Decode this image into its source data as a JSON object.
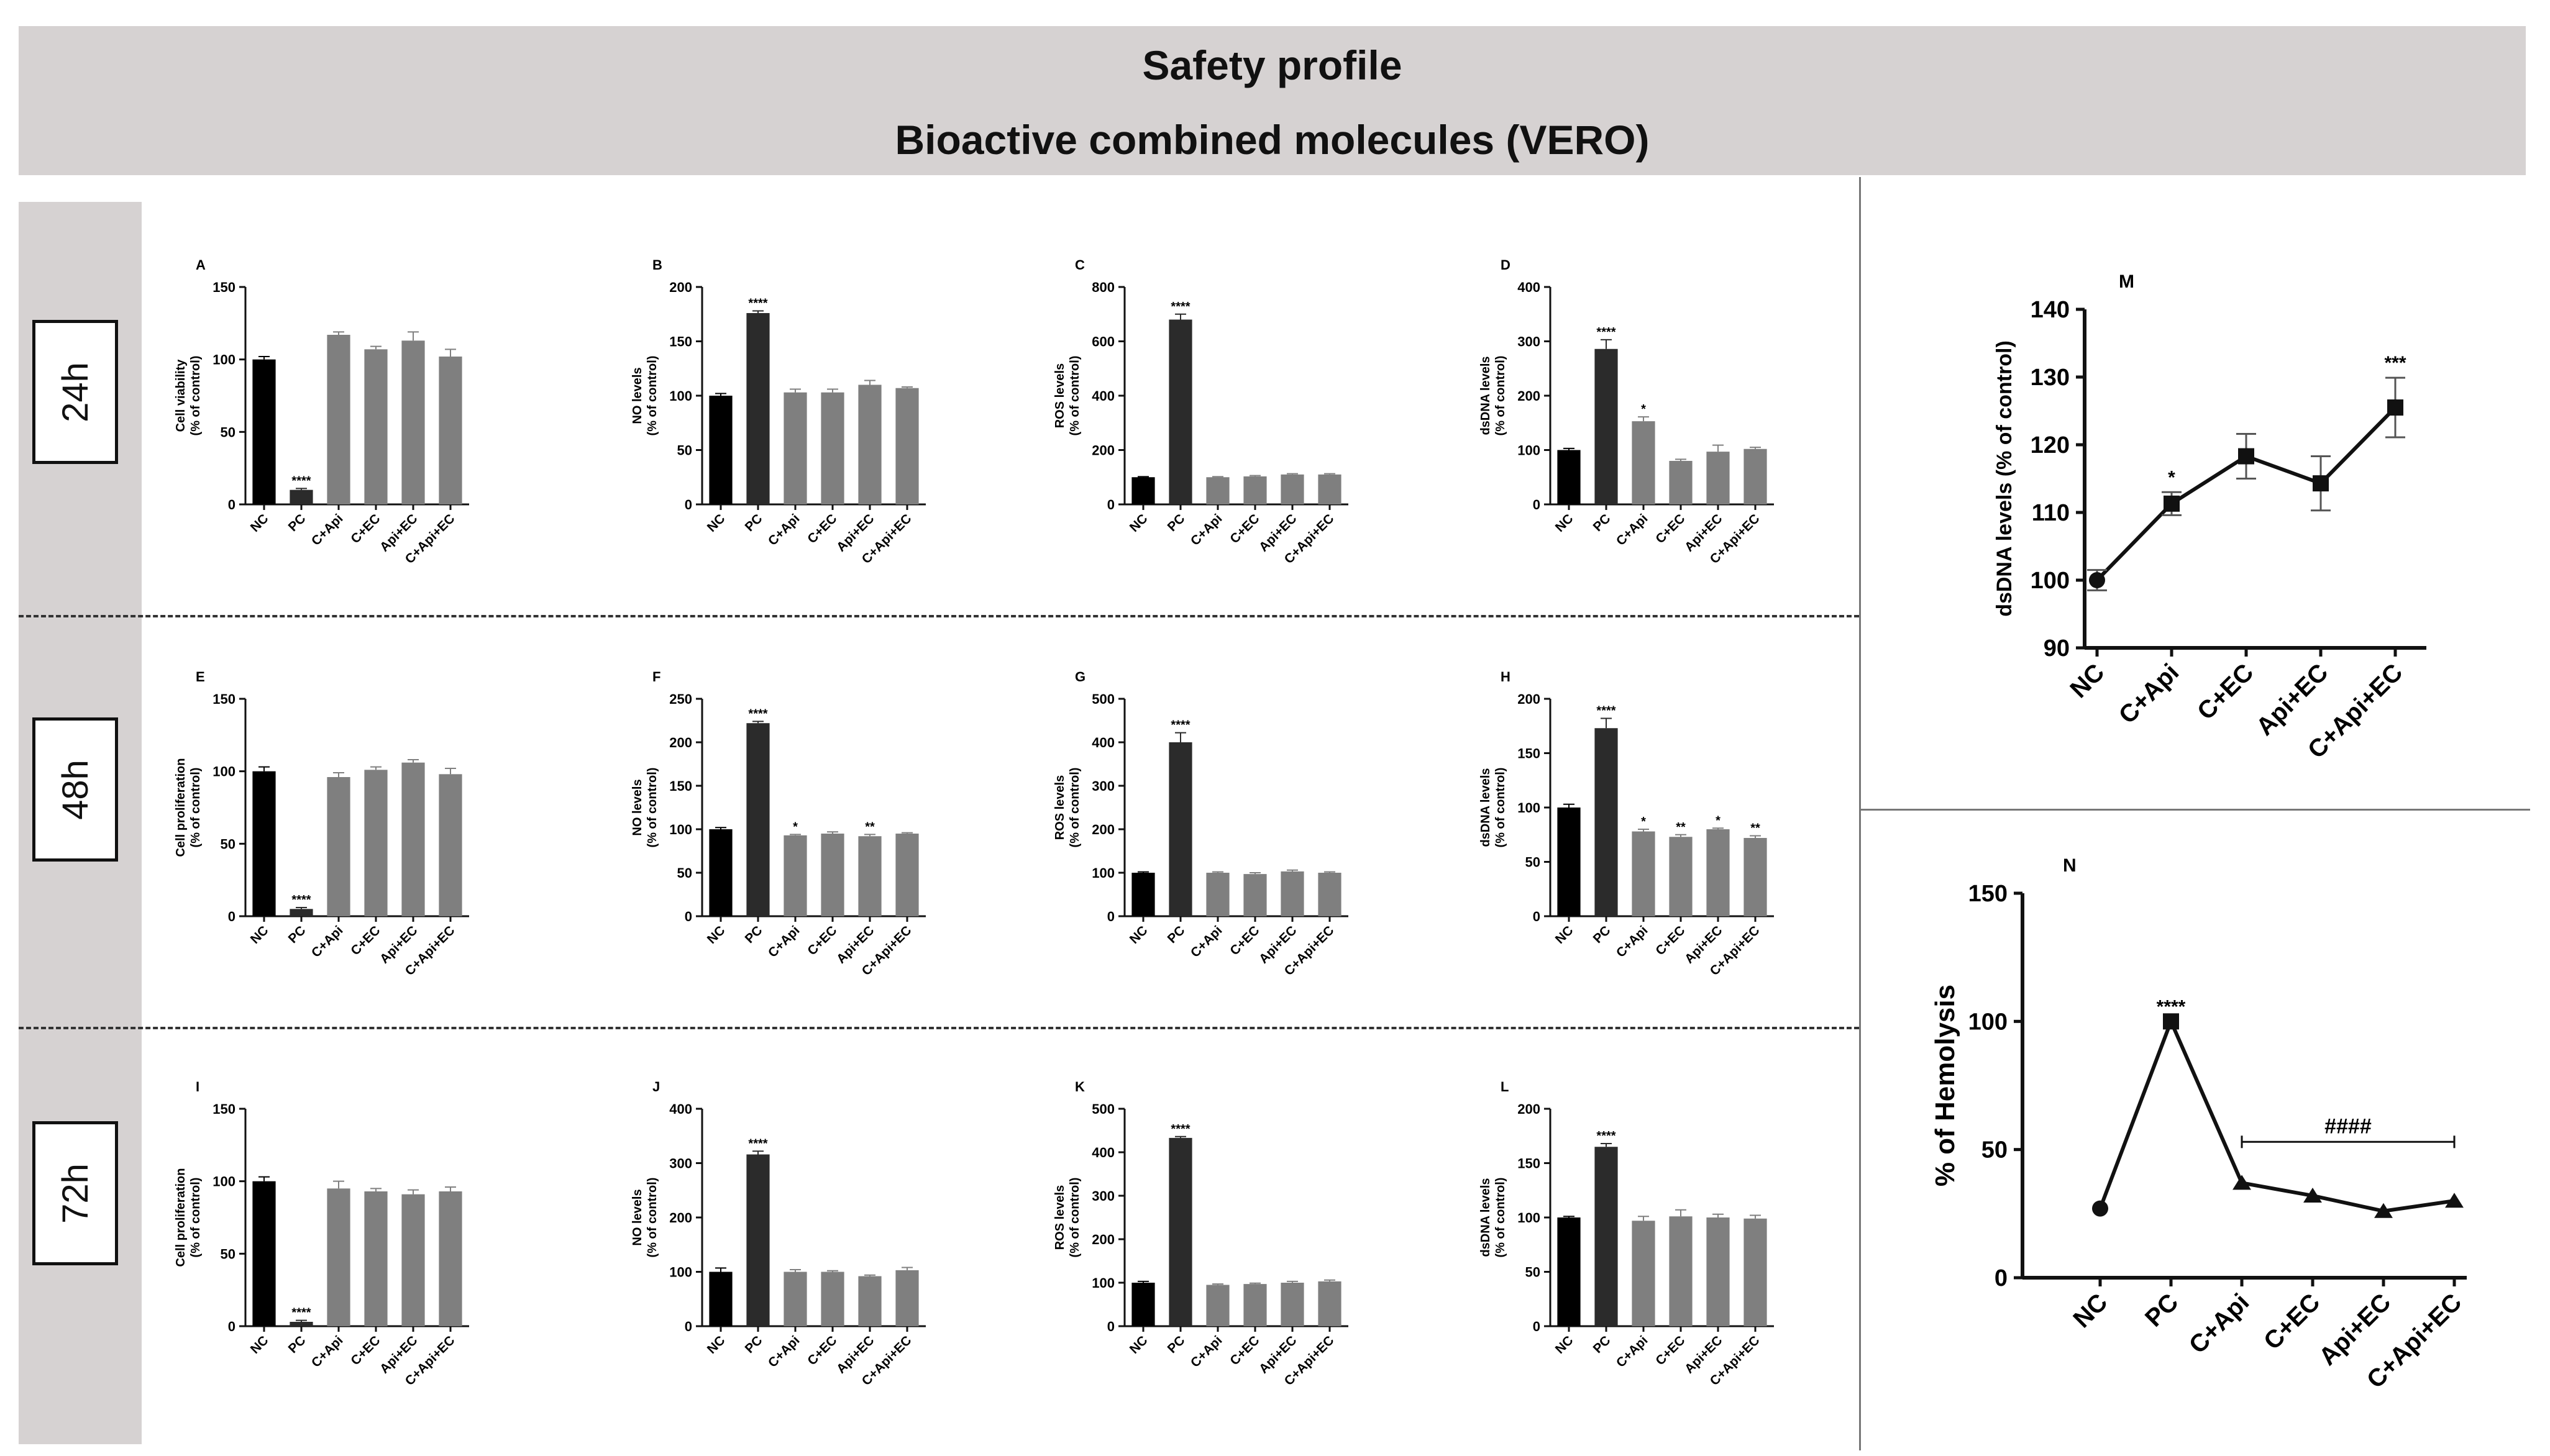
{
  "header": {
    "title": "Safety profile",
    "subtitle": "Bioactive combined molecules (VERO)"
  },
  "row_labels": [
    "24h",
    "48h",
    "72h"
  ],
  "colors": {
    "nc": "#000000",
    "pc": "#2b2b2b",
    "treat": "#7f7f7f",
    "banner": "#d6d2d2"
  },
  "chart_data": [
    {
      "id": "A",
      "type": "bar",
      "title": "A",
      "ylabel": "Cell viability (% of control)",
      "ylim": [
        0,
        150
      ],
      "yticks": [
        0,
        50,
        100,
        150
      ],
      "categories": [
        "NC",
        "PC",
        "C+Api",
        "C+EC",
        "Api+EC",
        "C+Api+EC"
      ],
      "values": [
        100,
        10,
        117,
        107,
        113,
        102
      ],
      "errors": [
        2,
        1,
        2,
        2,
        6,
        5
      ],
      "annotations": [
        "",
        "****",
        "",
        "",
        "",
        ""
      ]
    },
    {
      "id": "B",
      "type": "bar",
      "title": "B",
      "ylabel": "NO levels (% of control)",
      "ylim": [
        0,
        200
      ],
      "yticks": [
        0,
        50,
        100,
        150,
        200
      ],
      "categories": [
        "NC",
        "PC",
        "C+Api",
        "C+EC",
        "Api+EC",
        "C+Api+EC"
      ],
      "values": [
        100,
        176,
        103,
        103,
        110,
        107
      ],
      "errors": [
        2,
        2,
        3,
        3,
        4,
        1
      ],
      "annotations": [
        "",
        "****",
        "",
        "",
        "",
        ""
      ]
    },
    {
      "id": "C",
      "type": "bar",
      "title": "C",
      "ylabel": "ROS levels (% of control)",
      "ylim": [
        0,
        800
      ],
      "yticks": [
        0,
        200,
        400,
        600,
        800
      ],
      "categories": [
        "NC",
        "PC",
        "C+Api",
        "C+EC",
        "Api+EC",
        "C+Api+EC"
      ],
      "values": [
        100,
        680,
        100,
        103,
        110,
        110
      ],
      "errors": [
        2,
        20,
        2,
        3,
        3,
        3
      ],
      "annotations": [
        "",
        "****",
        "",
        "",
        "",
        ""
      ]
    },
    {
      "id": "D",
      "type": "bar",
      "title": "D",
      "ylabel": "dsDNA levels (% of control)",
      "ylim": [
        0,
        400
      ],
      "yticks": [
        0,
        100,
        200,
        300,
        400
      ],
      "categories": [
        "NC",
        "PC",
        "C+Api",
        "C+EC",
        "Api+EC",
        "C+Api+EC"
      ],
      "values": [
        100,
        286,
        153,
        80,
        97,
        102
      ],
      "errors": [
        3,
        17,
        8,
        3,
        12,
        3
      ],
      "annotations": [
        "",
        "****",
        "*",
        "",
        "",
        ""
      ]
    },
    {
      "id": "E",
      "type": "bar",
      "title": "E",
      "ylabel": "Cell proliferation (% of control)",
      "ylim": [
        0,
        150
      ],
      "yticks": [
        0,
        50,
        100,
        150
      ],
      "categories": [
        "NC",
        "PC",
        "C+Api",
        "C+EC",
        "Api+EC",
        "C+Api+EC"
      ],
      "values": [
        100,
        5,
        96,
        101,
        106,
        98
      ],
      "errors": [
        3,
        1,
        3,
        2,
        2,
        4
      ],
      "annotations": [
        "",
        "****",
        "",
        "",
        "",
        ""
      ]
    },
    {
      "id": "F",
      "type": "bar",
      "title": "F",
      "ylabel": "NO levels (% of control)",
      "ylim": [
        0,
        250
      ],
      "yticks": [
        0,
        50,
        100,
        150,
        200,
        250
      ],
      "categories": [
        "NC",
        "PC",
        "C+Api",
        "C+EC",
        "Api+EC",
        "C+Api+EC"
      ],
      "values": [
        100,
        222,
        93,
        95,
        92,
        95
      ],
      "errors": [
        2,
        2,
        1,
        2,
        2,
        1
      ],
      "annotations": [
        "",
        "****",
        "*",
        "",
        "**",
        ""
      ]
    },
    {
      "id": "G",
      "type": "bar",
      "title": "G",
      "ylabel": "ROS levels (% of control)",
      "ylim": [
        0,
        500
      ],
      "yticks": [
        0,
        100,
        200,
        300,
        400,
        500
      ],
      "categories": [
        "NC",
        "PC",
        "C+Api",
        "C+EC",
        "Api+EC",
        "C+Api+EC"
      ],
      "values": [
        100,
        400,
        100,
        97,
        103,
        100
      ],
      "errors": [
        2,
        22,
        2,
        3,
        3,
        2
      ],
      "annotations": [
        "",
        "****",
        "",
        "",
        "",
        ""
      ]
    },
    {
      "id": "H",
      "type": "bar",
      "title": "H",
      "ylabel": "dsDNA levels (% of control)",
      "ylim": [
        0,
        200
      ],
      "yticks": [
        0,
        50,
        100,
        150,
        200
      ],
      "categories": [
        "NC",
        "PC",
        "C+Api",
        "C+EC",
        "Api+EC",
        "C+Api+EC"
      ],
      "values": [
        100,
        173,
        78,
        73,
        80,
        72
      ],
      "errors": [
        3,
        9,
        2,
        2,
        1,
        2
      ],
      "annotations": [
        "",
        "****",
        "*",
        "**",
        "*",
        "**"
      ]
    },
    {
      "id": "I",
      "type": "bar",
      "title": "I",
      "ylabel": "Cell proliferation (% of control)",
      "ylim": [
        0,
        150
      ],
      "yticks": [
        0,
        50,
        100,
        150
      ],
      "categories": [
        "NC",
        "PC",
        "C+Api",
        "C+EC",
        "Api+EC",
        "C+Api+EC"
      ],
      "values": [
        100,
        3,
        95,
        93,
        91,
        93
      ],
      "errors": [
        3,
        1,
        5,
        2,
        3,
        3
      ],
      "annotations": [
        "",
        "****",
        "",
        "",
        "",
        ""
      ]
    },
    {
      "id": "J",
      "type": "bar",
      "title": "J",
      "ylabel": "NO levels (% of control)",
      "ylim": [
        0,
        400
      ],
      "yticks": [
        0,
        100,
        200,
        300,
        400
      ],
      "categories": [
        "NC",
        "PC",
        "C+Api",
        "C+EC",
        "Api+EC",
        "C+Api+EC"
      ],
      "values": [
        100,
        316,
        100,
        100,
        92,
        103
      ],
      "errors": [
        7,
        6,
        4,
        2,
        2,
        5
      ],
      "annotations": [
        "",
        "****",
        "",
        "",
        "",
        ""
      ]
    },
    {
      "id": "K",
      "type": "bar",
      "title": "K",
      "ylabel": "ROS levels (% of control)",
      "ylim": [
        0,
        500
      ],
      "yticks": [
        0,
        100,
        200,
        300,
        400,
        500
      ],
      "categories": [
        "NC",
        "PC",
        "C+Api",
        "C+EC",
        "Api+EC",
        "C+Api+EC"
      ],
      "values": [
        100,
        433,
        95,
        97,
        100,
        103
      ],
      "errors": [
        3,
        3,
        2,
        2,
        3,
        3
      ],
      "annotations": [
        "",
        "****",
        "",
        "",
        "",
        ""
      ]
    },
    {
      "id": "L",
      "type": "bar",
      "title": "L",
      "ylabel": "dsDNA levels (% of control)",
      "ylim": [
        0,
        200
      ],
      "yticks": [
        0,
        50,
        100,
        150,
        200
      ],
      "categories": [
        "NC",
        "PC",
        "C+Api",
        "C+EC",
        "Api+EC",
        "C+Api+EC"
      ],
      "values": [
        100,
        165,
        97,
        101,
        100,
        99
      ],
      "errors": [
        1,
        3,
        4,
        6,
        3,
        3
      ],
      "annotations": [
        "",
        "****",
        "",
        "",
        "",
        ""
      ]
    },
    {
      "id": "M",
      "type": "line",
      "title": "M",
      "ylabel": "dsDNA levels (% of control)",
      "ylim": [
        90,
        140
      ],
      "yticks": [
        90,
        100,
        110,
        120,
        130,
        140
      ],
      "categories": [
        "NC",
        "C+Api",
        "C+EC",
        "Api+EC",
        "C+Api+EC"
      ],
      "values": [
        100,
        111.3,
        118.3,
        114.3,
        125.5
      ],
      "errors": [
        1.5,
        1.7,
        3.3,
        4.0,
        4.4
      ],
      "markers": [
        "circle",
        "square",
        "square",
        "square",
        "square"
      ],
      "annotations": [
        "",
        "*",
        "",
        "",
        "***"
      ]
    },
    {
      "id": "N",
      "type": "line",
      "title": "N",
      "ylabel": "% of Hemolysis",
      "ylim": [
        0,
        150
      ],
      "yticks": [
        0,
        50,
        100,
        150
      ],
      "categories": [
        "NC",
        "PC",
        "C+Api",
        "C+EC",
        "Api+EC",
        "C+Api+EC"
      ],
      "values": [
        27,
        100,
        37,
        32,
        26,
        30
      ],
      "errors": [
        0,
        0,
        0,
        0,
        0,
        0
      ],
      "markers": [
        "circle",
        "square",
        "triangle",
        "triangle",
        "triangle",
        "triangle"
      ],
      "annotations": [
        "",
        "****",
        "",
        "",
        "",
        ""
      ],
      "bracket": {
        "from": 2,
        "to": 5,
        "label": "####"
      }
    }
  ]
}
